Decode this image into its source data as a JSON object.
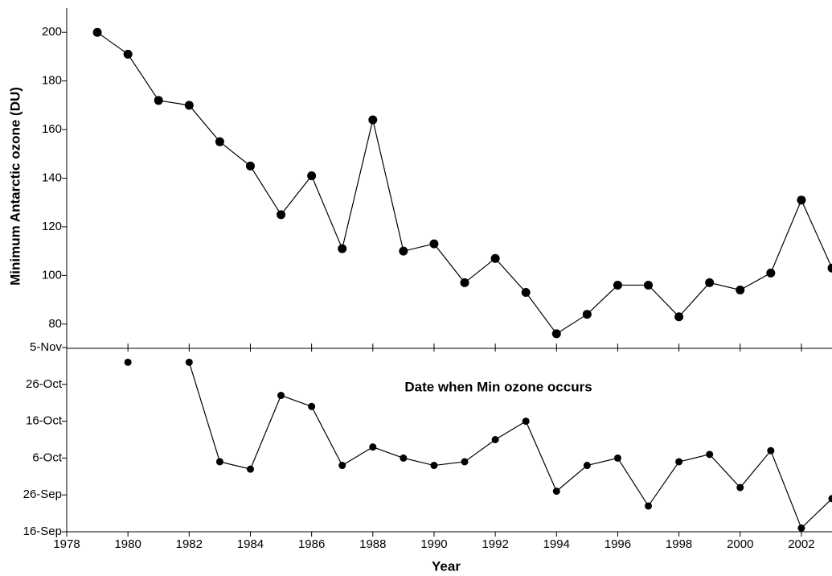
{
  "chart_data": [
    {
      "type": "line",
      "ylabel": "Minimum Antarctic ozone (DU)",
      "color": "#000000",
      "x": [
        1979,
        1980,
        1981,
        1982,
        1983,
        1984,
        1985,
        1986,
        1987,
        1988,
        1989,
        1990,
        1991,
        1992,
        1993,
        1994,
        1995,
        1996,
        1997,
        1998,
        1999,
        2000,
        2001,
        2002,
        2003
      ],
      "values": [
        200,
        191,
        172,
        170,
        155,
        145,
        125,
        141,
        111,
        164,
        110,
        113,
        97,
        107,
        93,
        76,
        84,
        96,
        96,
        83,
        97,
        94,
        101,
        131,
        103
      ],
      "xlim": [
        1978,
        2003
      ],
      "ylim": [
        70,
        210
      ],
      "yticks": [
        80,
        100,
        120,
        140,
        160,
        180,
        200
      ]
    },
    {
      "type": "line",
      "annotation": "Date when Min ozone occurs",
      "xlabel": "Year",
      "color": "#000000",
      "x": [
        1979,
        1980,
        1981,
        1982,
        1983,
        1984,
        1985,
        1986,
        1987,
        1988,
        1989,
        1990,
        1991,
        1992,
        1993,
        1994,
        1995,
        1996,
        1997,
        1998,
        1999,
        2000,
        2001,
        2002,
        2003
      ],
      "values": [
        null,
        305,
        null,
        305,
        278,
        276,
        296,
        293,
        277,
        282,
        279,
        277,
        278,
        284,
        289,
        270,
        277,
        279,
        266,
        278,
        280,
        271,
        281,
        260,
        268
      ],
      "xlim": [
        1978,
        2003
      ],
      "xticks": [
        1978,
        1980,
        1982,
        1984,
        1986,
        1988,
        1990,
        1992,
        1994,
        1996,
        1998,
        2000,
        2002
      ],
      "ylim": [
        259,
        309
      ],
      "yticks": [
        {
          "value": 259,
          "label": "16-Sep"
        },
        {
          "value": 269,
          "label": "26-Sep"
        },
        {
          "value": 279,
          "label": "6-Oct"
        },
        {
          "value": 289,
          "label": "16-Oct"
        },
        {
          "value": 299,
          "label": "26-Oct"
        },
        {
          "value": 309,
          "label": "5-Nov"
        }
      ]
    }
  ]
}
